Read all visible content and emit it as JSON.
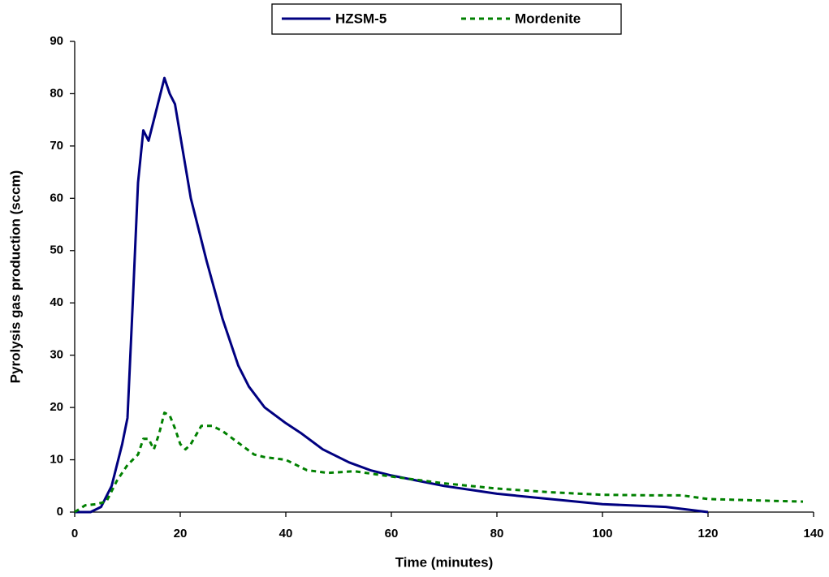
{
  "chart_data": {
    "type": "line",
    "xlabel": "Time (minutes)",
    "ylabel": "Pyrolysis gas production (sccm)",
    "xlim": [
      0,
      140
    ],
    "ylim": [
      0,
      90
    ],
    "xticks": [
      0,
      20,
      40,
      60,
      80,
      100,
      120,
      140
    ],
    "yticks": [
      0,
      10,
      20,
      30,
      40,
      50,
      60,
      70,
      80,
      90
    ],
    "legend": "top",
    "series": [
      {
        "name": "HZSM-5",
        "color": "#000080",
        "dash": "solid",
        "x": [
          0,
          3,
          5,
          7,
          9,
          10,
          11,
          12,
          13,
          14,
          15,
          16,
          17,
          18,
          19,
          20,
          22,
          25,
          28,
          31,
          33,
          36,
          40,
          43,
          47,
          52,
          56,
          60,
          70,
          80,
          90,
          100,
          112,
          120
        ],
        "values": [
          0,
          0,
          1,
          5,
          13,
          18,
          40,
          63,
          73,
          71,
          75,
          79,
          83,
          80,
          78,
          72,
          60,
          48,
          37,
          28,
          24,
          20,
          17,
          15,
          12,
          9.5,
          8,
          7,
          5,
          3.5,
          2.5,
          1.5,
          1,
          0
        ]
      },
      {
        "name": "Mordenite",
        "color": "#008000",
        "dash": "dashed",
        "x": [
          0,
          2,
          4,
          6,
          8,
          10,
          12,
          13,
          14,
          15,
          16,
          17,
          18,
          19,
          20,
          21,
          22,
          24,
          26,
          28,
          30,
          32,
          34,
          36,
          40,
          44,
          48,
          53,
          60,
          70,
          80,
          90,
          100,
          110,
          115,
          120,
          130,
          138
        ],
        "values": [
          0,
          1.3,
          1.5,
          2,
          6,
          9,
          11,
          14,
          14,
          12,
          15,
          19,
          18.5,
          16,
          13,
          12,
          13,
          16.5,
          16.5,
          15.5,
          14,
          12.5,
          11,
          10.5,
          10,
          8,
          7.5,
          7.8,
          6.8,
          5.5,
          4.5,
          3.8,
          3.3,
          3.2,
          3.2,
          2.5,
          2.2,
          2
        ]
      }
    ]
  }
}
